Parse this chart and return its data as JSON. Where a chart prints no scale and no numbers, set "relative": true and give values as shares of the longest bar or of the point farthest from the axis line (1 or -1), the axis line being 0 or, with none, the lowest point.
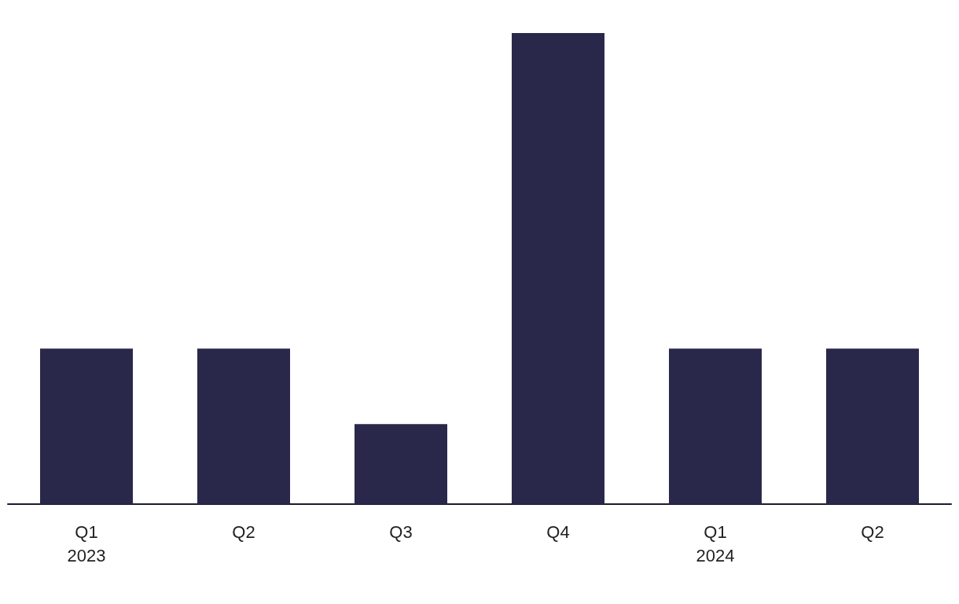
{
  "chart_data": {
    "type": "bar",
    "relative": true,
    "categories": [
      "Q1\n2023",
      "Q2",
      "Q3",
      "Q4",
      "Q1\n2024",
      "Q2"
    ],
    "values": [
      0.33,
      0.33,
      0.17,
      1,
      0.33,
      0.33
    ],
    "color": "#29284b"
  }
}
